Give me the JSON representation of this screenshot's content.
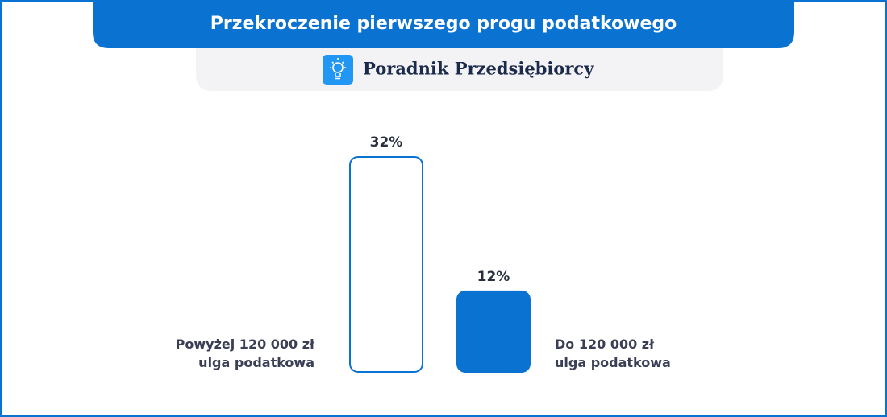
{
  "chart_data": {
    "type": "bar",
    "title": "Przekroczenie pierwszego progu podatkowego",
    "subtitle": "Poradnik Przedsiębiorcy",
    "categories": [
      "Powyżej 120 000 zł\nulga podatkowa",
      "Do 120 000 zł\nulga podatkowa"
    ],
    "values": [
      32,
      12
    ],
    "value_labels": [
      "32%",
      "12%"
    ],
    "colors": [
      "#ffffff",
      "#0a72d1"
    ],
    "stroke": "#0a72d1"
  }
}
